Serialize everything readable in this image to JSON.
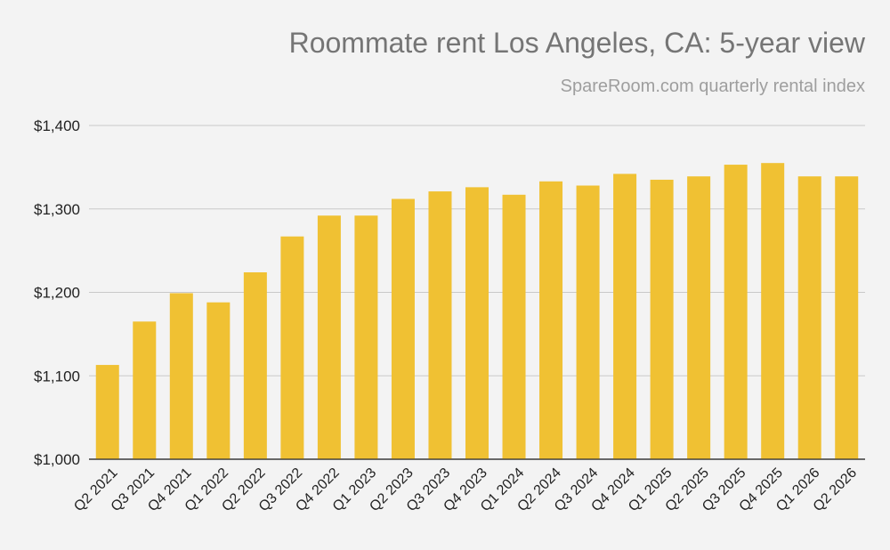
{
  "chart_data": {
    "type": "bar",
    "title": "Roommate rent Los Angeles, CA: 5-year view",
    "subtitle": "SpareRoom.com quarterly rental index",
    "xlabel": "",
    "ylabel": "",
    "categories": [
      "Q2 2021",
      "Q3 2021",
      "Q4 2021",
      "Q1 2022",
      "Q2 2022",
      "Q3 2022",
      "Q4 2022",
      "Q1 2023",
      "Q2 2023",
      "Q3 2023",
      "Q4 2023",
      "Q1 2024",
      "Q2 2024",
      "Q3 2024",
      "Q4 2024",
      "Q1 2025",
      "Q2 2025",
      "Q3 2025",
      "Q4 2025",
      "Q1 2026",
      "Q2 2026"
    ],
    "values": [
      1113,
      1165,
      1199,
      1188,
      1224,
      1267,
      1292,
      1292,
      1312,
      1321,
      1326,
      1317,
      1333,
      1328,
      1342,
      1335,
      1339,
      1353,
      1355,
      1339,
      1339
    ],
    "ylim": [
      1000,
      1400
    ],
    "yticks": [
      1000,
      1100,
      1200,
      1300,
      1400
    ],
    "ytick_labels": [
      "$1,000",
      "$1,100",
      "$1,200",
      "$1,300",
      "$1,400"
    ],
    "grid": true,
    "legend": "none",
    "bar_color": "#f0c133",
    "grid_color": "#c9c9c9"
  }
}
